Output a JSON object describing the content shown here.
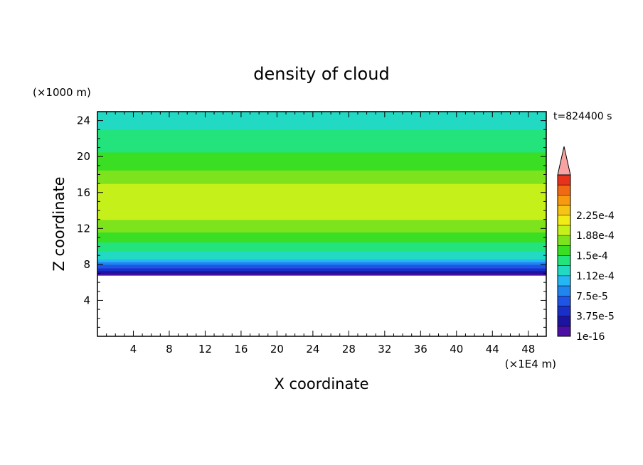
{
  "chart_data": {
    "type": "heatmap",
    "title": "density of cloud",
    "xlabel": "X coordinate",
    "ylabel": "Z coordinate",
    "x_unit": "(×1E4 m)",
    "y_unit": "(×1000 m)",
    "time_label": "t=824400 s",
    "xlim": [
      0,
      50
    ],
    "ylim": [
      0,
      25
    ],
    "x_ticks": [
      "4",
      "8",
      "12",
      "16",
      "20",
      "24",
      "28",
      "32",
      "36",
      "40",
      "44",
      "48"
    ],
    "x_tick_values": [
      4,
      8,
      12,
      16,
      20,
      24,
      28,
      32,
      36,
      40,
      44,
      48
    ],
    "y_ticks": [
      "4",
      "8",
      "12",
      "16",
      "20",
      "24"
    ],
    "y_tick_values": [
      4,
      8,
      12,
      16,
      20,
      24
    ],
    "colorbar": {
      "extend": "max",
      "extend_color": "#f7a3a3",
      "levels": [
        1e-16,
        1.875e-05,
        3.75e-05,
        5.625e-05,
        7.5e-05,
        9.375e-05,
        0.0001125,
        0.00013125,
        0.00015,
        0.00016875,
        0.0001875,
        0.00020625,
        0.000225,
        0.00024375
      ],
      "colors": [
        "#4b0fa3",
        "#1c14a0",
        "#1a2ec8",
        "#1f55e6",
        "#1f86f0",
        "#26b6f6",
        "#22d9c4",
        "#22e37c",
        "#3ade22",
        "#7de31d",
        "#c6f01a",
        "#f2ec16",
        "#f5c414",
        "#f79a10",
        "#f06a14",
        "#e8331c"
      ],
      "tick_labels": [
        "1e-16",
        "3.75e-5",
        "7.5e-5",
        "1.12e-4",
        "1.5e-4",
        "1.88e-4",
        "2.25e-4"
      ]
    },
    "profile_by_height": {
      "z": [
        6.8,
        7.0,
        7.3,
        7.6,
        8.0,
        8.3,
        8.6,
        9.0,
        9.5,
        10.0,
        10.5,
        11.0,
        11.6,
        12.3,
        13.0,
        14.0,
        16.0,
        17.0,
        17.8,
        18.5,
        19.5,
        20.5,
        21.5,
        23.0,
        25.0
      ],
      "level_index": [
        0,
        1,
        2,
        3,
        4,
        5,
        6,
        6,
        7,
        7,
        8,
        8,
        9,
        9,
        10,
        10,
        10,
        9,
        9,
        8,
        8,
        7,
        7,
        6,
        6
      ]
    },
    "empty_below_z": 6.7
  }
}
